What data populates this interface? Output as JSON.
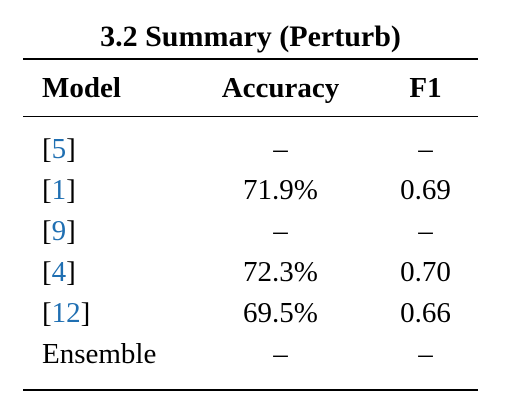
{
  "table": {
    "caption": "3.2 Summary (Perturb)",
    "headers": {
      "model": "Model",
      "accuracy": "Accuracy",
      "f1": "F1"
    },
    "rows": [
      {
        "ref": "5",
        "model": "",
        "accuracy": "–",
        "f1": "–"
      },
      {
        "ref": "1",
        "model": "",
        "accuracy": "71.9%",
        "f1": "0.69"
      },
      {
        "ref": "9",
        "model": "",
        "accuracy": "–",
        "f1": "–"
      },
      {
        "ref": "4",
        "model": "",
        "accuracy": "72.3%",
        "f1": "0.70"
      },
      {
        "ref": "12",
        "model": "",
        "accuracy": "69.5%",
        "f1": "0.66"
      },
      {
        "ref": "",
        "model": "Ensemble",
        "accuracy": "–",
        "f1": "–"
      }
    ]
  },
  "colors": {
    "citation_link": "#1f6fb2",
    "text": "#000000"
  }
}
